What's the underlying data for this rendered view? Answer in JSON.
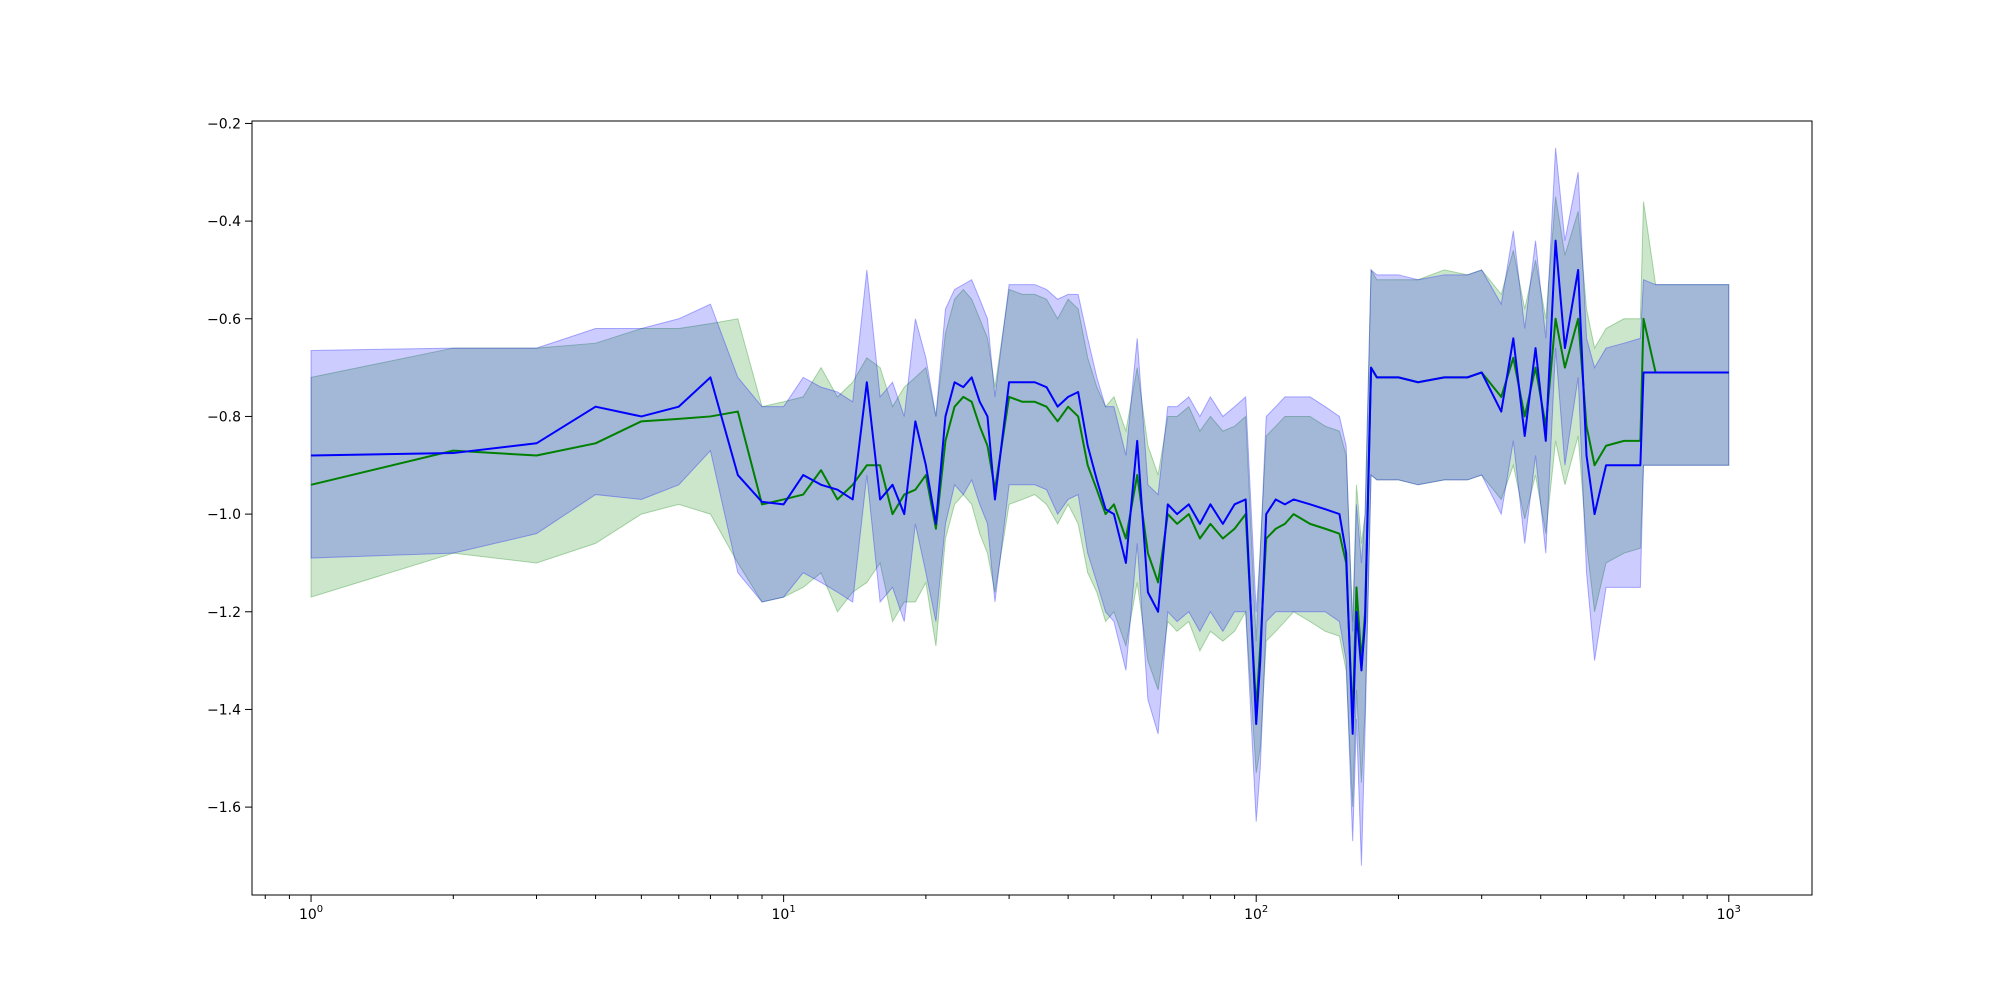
{
  "chart_data": {
    "type": "line",
    "title": "",
    "xlabel": "",
    "ylabel": "",
    "xscale": "log",
    "xlim": [
      0.75,
      1500
    ],
    "ylim": [
      -1.78,
      -0.195
    ],
    "grid": false,
    "legend": "none",
    "x_ticks": [
      {
        "base": "10",
        "exp": "0",
        "value": 1
      },
      {
        "base": "10",
        "exp": "1",
        "value": 10
      },
      {
        "base": "10",
        "exp": "2",
        "value": 100
      },
      {
        "base": "10",
        "exp": "3",
        "value": 1000
      }
    ],
    "y_ticks": [
      {
        "label": "−0.2",
        "value": -0.2
      },
      {
        "label": "−0.4",
        "value": -0.4
      },
      {
        "label": "−0.6",
        "value": -0.6
      },
      {
        "label": "−0.8",
        "value": -0.8
      },
      {
        "label": "−1.0",
        "value": -1.0
      },
      {
        "label": "−1.2",
        "value": -1.2
      },
      {
        "label": "−1.4",
        "value": -1.4
      },
      {
        "label": "−1.6",
        "value": -1.6
      }
    ],
    "series": [
      {
        "color": "#008000",
        "band_color": "#008000",
        "band_opacity": 0.2,
        "x": [
          1,
          2,
          3,
          4,
          5,
          6,
          7,
          8,
          9,
          10,
          11,
          12,
          13,
          14,
          15,
          16,
          17,
          18,
          19,
          20,
          21,
          22,
          23,
          24,
          25,
          26,
          27,
          28,
          30,
          32,
          34,
          36,
          38,
          40,
          42,
          44,
          46,
          48,
          50,
          53,
          56,
          59,
          62,
          65,
          68,
          72,
          76,
          80,
          85,
          90,
          95,
          100,
          102,
          105,
          110,
          115,
          120,
          130,
          140,
          150,
          155,
          160,
          163,
          167,
          170,
          175,
          180,
          200,
          220,
          250,
          280,
          300,
          330,
          350,
          370,
          390,
          410,
          430,
          450,
          480,
          500,
          520,
          550,
          600,
          650,
          660,
          700,
          800,
          1000
        ],
        "y": [
          -0.94,
          -0.87,
          -0.88,
          -0.855,
          -0.81,
          -0.805,
          -0.8,
          -0.79,
          -0.98,
          -0.97,
          -0.96,
          -0.91,
          -0.97,
          -0.94,
          -0.9,
          -0.9,
          -1.0,
          -0.96,
          -0.95,
          -0.92,
          -1.03,
          -0.85,
          -0.78,
          -0.76,
          -0.77,
          -0.82,
          -0.86,
          -0.95,
          -0.76,
          -0.77,
          -0.77,
          -0.78,
          -0.81,
          -0.78,
          -0.8,
          -0.9,
          -0.95,
          -1.0,
          -0.98,
          -1.05,
          -0.92,
          -1.08,
          -1.14,
          -1.0,
          -1.02,
          -1.0,
          -1.05,
          -1.02,
          -1.05,
          -1.03,
          -1.0,
          -1.4,
          -1.27,
          -1.05,
          -1.03,
          -1.02,
          -1.0,
          -1.02,
          -1.03,
          -1.04,
          -1.1,
          -1.42,
          -1.15,
          -1.3,
          -1.2,
          -0.7,
          -0.72,
          -0.72,
          -0.73,
          -0.72,
          -0.72,
          -0.71,
          -0.76,
          -0.68,
          -0.8,
          -0.7,
          -0.82,
          -0.6,
          -0.7,
          -0.6,
          -0.82,
          -0.9,
          -0.86,
          -0.85,
          -0.85,
          -0.6,
          -0.71,
          -0.71,
          -0.71
        ],
        "lower": [
          -1.17,
          -1.08,
          -1.1,
          -1.06,
          -1.0,
          -0.98,
          -1.0,
          -1.1,
          -1.18,
          -1.17,
          -1.15,
          -1.12,
          -1.2,
          -1.16,
          -1.14,
          -1.1,
          -1.22,
          -1.18,
          -1.18,
          -1.14,
          -1.27,
          -1.05,
          -0.98,
          -0.96,
          -0.98,
          -1.04,
          -1.08,
          -1.16,
          -0.98,
          -0.97,
          -0.96,
          -0.98,
          -1.02,
          -0.98,
          -1.02,
          -1.12,
          -1.16,
          -1.22,
          -1.2,
          -1.27,
          -1.14,
          -1.3,
          -1.36,
          -1.22,
          -1.24,
          -1.22,
          -1.28,
          -1.24,
          -1.26,
          -1.24,
          -1.2,
          -1.53,
          -1.48,
          -1.26,
          -1.24,
          -1.22,
          -1.2,
          -1.22,
          -1.24,
          -1.25,
          -1.32,
          -1.6,
          -1.36,
          -1.55,
          -1.4,
          -0.92,
          -0.93,
          -0.93,
          -0.94,
          -0.93,
          -0.93,
          -0.92,
          -0.97,
          -0.9,
          -1.01,
          -0.92,
          -1.04,
          -0.85,
          -0.94,
          -0.84,
          -1.06,
          -1.2,
          -1.1,
          -1.08,
          -1.07,
          -0.9,
          -0.9,
          -0.9,
          -0.9
        ],
        "upper": [
          -0.72,
          -0.66,
          -0.66,
          -0.65,
          -0.62,
          -0.62,
          -0.61,
          -0.6,
          -0.78,
          -0.77,
          -0.76,
          -0.7,
          -0.76,
          -0.73,
          -0.68,
          -0.7,
          -0.78,
          -0.74,
          -0.72,
          -0.7,
          -0.8,
          -0.63,
          -0.56,
          -0.54,
          -0.56,
          -0.6,
          -0.64,
          -0.74,
          -0.54,
          -0.55,
          -0.55,
          -0.56,
          -0.6,
          -0.56,
          -0.58,
          -0.68,
          -0.74,
          -0.78,
          -0.76,
          -0.83,
          -0.7,
          -0.86,
          -0.92,
          -0.8,
          -0.8,
          -0.78,
          -0.83,
          -0.8,
          -0.83,
          -0.82,
          -0.8,
          -1.26,
          -1.07,
          -0.84,
          -0.82,
          -0.8,
          -0.8,
          -0.8,
          -0.82,
          -0.83,
          -0.88,
          -1.22,
          -0.94,
          -1.06,
          -1.0,
          -0.5,
          -0.52,
          -0.52,
          -0.52,
          -0.5,
          -0.51,
          -0.5,
          -0.55,
          -0.46,
          -0.58,
          -0.48,
          -0.6,
          -0.35,
          -0.47,
          -0.38,
          -0.58,
          -0.66,
          -0.62,
          -0.6,
          -0.6,
          -0.36,
          -0.53,
          -0.53,
          -0.53
        ]
      },
      {
        "color": "#0000ff",
        "band_color": "#0000ff",
        "band_opacity": 0.2,
        "x": [
          1,
          2,
          3,
          4,
          5,
          6,
          7,
          8,
          9,
          10,
          11,
          12,
          13,
          14,
          15,
          16,
          17,
          18,
          19,
          20,
          21,
          22,
          23,
          24,
          25,
          26,
          27,
          28,
          30,
          32,
          34,
          36,
          38,
          40,
          42,
          44,
          46,
          48,
          50,
          53,
          56,
          59,
          62,
          65,
          68,
          72,
          76,
          80,
          85,
          90,
          95,
          100,
          102,
          105,
          110,
          115,
          120,
          130,
          140,
          150,
          155,
          160,
          163,
          167,
          170,
          175,
          180,
          200,
          220,
          250,
          280,
          300,
          330,
          350,
          370,
          390,
          410,
          430,
          450,
          480,
          500,
          520,
          550,
          600,
          650,
          660,
          700,
          800,
          1000
        ],
        "y": [
          -0.88,
          -0.875,
          -0.855,
          -0.78,
          -0.8,
          -0.78,
          -0.72,
          -0.92,
          -0.975,
          -0.98,
          -0.92,
          -0.94,
          -0.95,
          -0.97,
          -0.73,
          -0.97,
          -0.94,
          -1.0,
          -0.81,
          -0.9,
          -1.02,
          -0.8,
          -0.73,
          -0.74,
          -0.72,
          -0.77,
          -0.8,
          -0.97,
          -0.73,
          -0.73,
          -0.73,
          -0.74,
          -0.78,
          -0.76,
          -0.75,
          -0.86,
          -0.93,
          -0.99,
          -1.0,
          -1.1,
          -0.85,
          -1.16,
          -1.2,
          -0.98,
          -1.0,
          -0.98,
          -1.02,
          -0.98,
          -1.02,
          -0.98,
          -0.97,
          -1.43,
          -1.3,
          -1.0,
          -0.97,
          -0.98,
          -0.97,
          -0.98,
          -0.99,
          -1.0,
          -1.08,
          -1.45,
          -1.2,
          -1.32,
          -1.22,
          -0.7,
          -0.72,
          -0.72,
          -0.73,
          -0.72,
          -0.72,
          -0.71,
          -0.79,
          -0.64,
          -0.84,
          -0.66,
          -0.85,
          -0.44,
          -0.66,
          -0.5,
          -0.88,
          -1.0,
          -0.9,
          -0.9,
          -0.9,
          -0.71,
          -0.71,
          -0.71,
          -0.71
        ],
        "lower": [
          -1.09,
          -1.08,
          -1.04,
          -0.96,
          -0.97,
          -0.94,
          -0.87,
          -1.12,
          -1.18,
          -1.17,
          -1.12,
          -1.14,
          -1.16,
          -1.18,
          -0.92,
          -1.18,
          -1.15,
          -1.22,
          -1.02,
          -1.12,
          -1.22,
          -1.02,
          -0.94,
          -0.96,
          -0.93,
          -0.98,
          -1.02,
          -1.18,
          -0.94,
          -0.94,
          -0.94,
          -0.95,
          -1.0,
          -0.97,
          -0.96,
          -1.08,
          -1.14,
          -1.2,
          -1.22,
          -1.32,
          -1.06,
          -1.38,
          -1.45,
          -1.2,
          -1.22,
          -1.2,
          -1.24,
          -1.2,
          -1.24,
          -1.2,
          -1.2,
          -1.63,
          -1.52,
          -1.22,
          -1.2,
          -1.2,
          -1.2,
          -1.2,
          -1.2,
          -1.22,
          -1.3,
          -1.67,
          -1.42,
          -1.72,
          -1.44,
          -0.92,
          -0.93,
          -0.93,
          -0.94,
          -0.93,
          -0.93,
          -0.92,
          -1.0,
          -0.85,
          -1.06,
          -0.88,
          -1.08,
          -0.66,
          -0.9,
          -0.72,
          -1.12,
          -1.3,
          -1.15,
          -1.15,
          -1.15,
          -0.9,
          -0.9,
          -0.9,
          -0.9
        ],
        "upper": [
          -0.665,
          -0.66,
          -0.66,
          -0.62,
          -0.62,
          -0.6,
          -0.57,
          -0.72,
          -0.78,
          -0.78,
          -0.72,
          -0.74,
          -0.75,
          -0.77,
          -0.5,
          -0.76,
          -0.73,
          -0.8,
          -0.6,
          -0.68,
          -0.8,
          -0.58,
          -0.54,
          -0.53,
          -0.52,
          -0.56,
          -0.6,
          -0.76,
          -0.53,
          -0.53,
          -0.53,
          -0.54,
          -0.56,
          -0.55,
          -0.55,
          -0.64,
          -0.72,
          -0.78,
          -0.78,
          -0.88,
          -0.64,
          -0.94,
          -0.96,
          -0.78,
          -0.78,
          -0.76,
          -0.8,
          -0.76,
          -0.8,
          -0.78,
          -0.76,
          -1.2,
          -1.08,
          -0.8,
          -0.78,
          -0.76,
          -0.76,
          -0.76,
          -0.78,
          -0.8,
          -0.86,
          -1.24,
          -0.98,
          -1.1,
          -1.0,
          -0.5,
          -0.51,
          -0.51,
          -0.52,
          -0.51,
          -0.51,
          -0.5,
          -0.57,
          -0.42,
          -0.62,
          -0.44,
          -0.64,
          -0.25,
          -0.44,
          -0.3,
          -0.64,
          -0.7,
          -0.66,
          -0.65,
          -0.64,
          -0.52,
          -0.53,
          -0.53,
          -0.53
        ]
      }
    ]
  }
}
